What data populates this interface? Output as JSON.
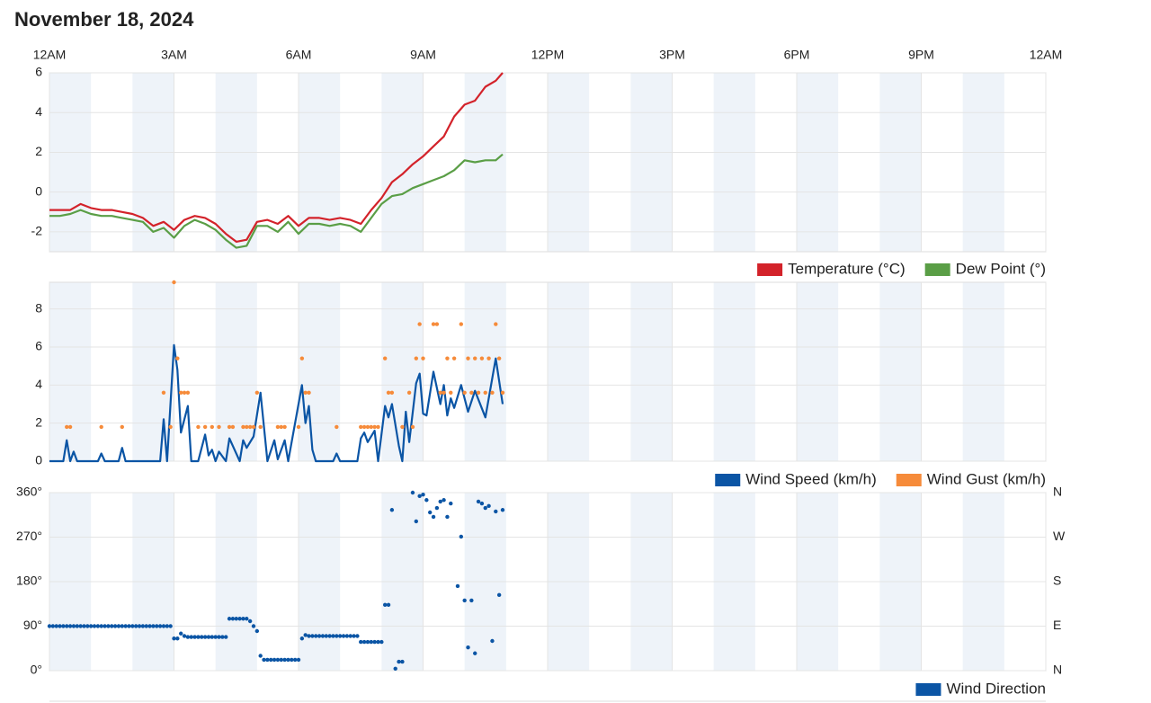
{
  "title": "November 18, 2024",
  "chart_data": [
    {
      "type": "line",
      "xlim": [
        0,
        1440
      ],
      "xticks": [
        {
          "value": 0,
          "label": "12AM"
        },
        {
          "value": 180,
          "label": "3AM"
        },
        {
          "value": 360,
          "label": "6AM"
        },
        {
          "value": 540,
          "label": "9AM"
        },
        {
          "value": 720,
          "label": "12PM"
        },
        {
          "value": 900,
          "label": "3PM"
        },
        {
          "value": 1080,
          "label": "6PM"
        },
        {
          "value": 1260,
          "label": "9PM"
        },
        {
          "value": 1440,
          "label": "12AM"
        }
      ],
      "ylim": [
        -3,
        6
      ],
      "yticks": [
        -2,
        0,
        2,
        4,
        6
      ],
      "grid": true,
      "x": [
        0,
        15,
        30,
        45,
        60,
        75,
        90,
        105,
        120,
        135,
        150,
        165,
        180,
        195,
        210,
        225,
        240,
        255,
        270,
        285,
        300,
        315,
        330,
        345,
        360,
        375,
        390,
        405,
        420,
        435,
        450,
        465,
        480,
        495,
        510,
        525,
        540,
        555,
        570,
        585,
        600,
        615,
        630,
        645,
        655
      ],
      "series": [
        {
          "name": "Temperature (°C)",
          "color": "#d3222a",
          "values": [
            -0.9,
            -0.9,
            -0.9,
            -0.6,
            -0.8,
            -0.9,
            -0.9,
            -1.0,
            -1.1,
            -1.3,
            -1.7,
            -1.5,
            -1.9,
            -1.4,
            -1.2,
            -1.3,
            -1.6,
            -2.1,
            -2.5,
            -2.4,
            -1.5,
            -1.4,
            -1.6,
            -1.2,
            -1.7,
            -1.3,
            -1.3,
            -1.4,
            -1.3,
            -1.4,
            -1.6,
            -0.9,
            -0.3,
            0.5,
            0.9,
            1.4,
            1.8,
            2.3,
            2.8,
            3.8,
            4.4,
            4.6,
            5.3,
            5.6,
            6.0
          ]
        },
        {
          "name": "Dew Point (°)",
          "color": "#5a9e46",
          "values": [
            -1.2,
            -1.2,
            -1.1,
            -0.9,
            -1.1,
            -1.2,
            -1.2,
            -1.3,
            -1.4,
            -1.5,
            -2.0,
            -1.8,
            -2.3,
            -1.7,
            -1.4,
            -1.6,
            -1.9,
            -2.4,
            -2.8,
            -2.7,
            -1.7,
            -1.7,
            -2.0,
            -1.5,
            -2.1,
            -1.6,
            -1.6,
            -1.7,
            -1.6,
            -1.7,
            -2.0,
            -1.3,
            -0.6,
            -0.2,
            -0.1,
            0.2,
            0.4,
            0.6,
            0.8,
            1.1,
            1.6,
            1.5,
            1.6,
            1.6,
            1.9
          ]
        }
      ]
    },
    {
      "type": "line",
      "xlim": [
        0,
        1440
      ],
      "ylim": [
        0,
        9.4
      ],
      "yticks": [
        0,
        2,
        4,
        6,
        8
      ],
      "grid": true,
      "series": [
        {
          "name": "Wind Speed (km/h)",
          "color": "#0b55a5",
          "x": [
            0,
            20,
            25,
            30,
            35,
            40,
            70,
            75,
            80,
            100,
            105,
            110,
            160,
            165,
            170,
            180,
            185,
            190,
            200,
            205,
            215,
            225,
            230,
            235,
            240,
            245,
            255,
            260,
            275,
            280,
            285,
            295,
            305,
            315,
            325,
            330,
            340,
            345,
            365,
            370,
            375,
            380,
            385,
            410,
            415,
            420,
            445,
            450,
            455,
            460,
            470,
            475,
            485,
            490,
            495,
            505,
            510,
            515,
            520,
            530,
            535,
            540,
            545,
            555,
            565,
            570,
            575,
            580,
            585,
            595,
            605,
            615,
            630,
            645,
            655
          ],
          "values": [
            0,
            0,
            1.1,
            0,
            0.5,
            0,
            0,
            0.4,
            0,
            0,
            0.7,
            0,
            0,
            2.2,
            0,
            6.1,
            4.8,
            1.5,
            2.9,
            0,
            0,
            1.4,
            0.3,
            0.6,
            0,
            0.5,
            0,
            1.2,
            0,
            1.1,
            0.7,
            1.3,
            3.6,
            0,
            1.1,
            0.1,
            1.1,
            0,
            4.0,
            2.0,
            2.9,
            0.6,
            0,
            0,
            0.4,
            0,
            0,
            1.2,
            1.5,
            1.0,
            1.6,
            0,
            2.9,
            2.3,
            3.0,
            0.8,
            0,
            2.6,
            1.0,
            4.1,
            4.6,
            2.5,
            2.4,
            4.7,
            3.0,
            4.0,
            2.4,
            3.3,
            2.8,
            4.0,
            2.6,
            3.7,
            2.3,
            5.4,
            3.0
          ]
        },
        {
          "name": "Wind Gust (km/h)",
          "color": "#f68b3a",
          "type": "scatter",
          "x": [
            25,
            30,
            75,
            105,
            165,
            175,
            180,
            185,
            190,
            195,
            200,
            215,
            225,
            235,
            245,
            260,
            265,
            280,
            285,
            290,
            295,
            300,
            305,
            330,
            335,
            340,
            360,
            365,
            370,
            375,
            415,
            450,
            455,
            460,
            465,
            470,
            475,
            485,
            490,
            495,
            510,
            520,
            525,
            530,
            535,
            540,
            555,
            560,
            565,
            570,
            575,
            580,
            585,
            595,
            600,
            605,
            610,
            615,
            620,
            625,
            630,
            635,
            640,
            645,
            650,
            655
          ],
          "values": [
            1.8,
            1.8,
            1.8,
            1.8,
            3.6,
            1.8,
            9.4,
            5.4,
            3.6,
            3.6,
            3.6,
            1.8,
            1.8,
            1.8,
            1.8,
            1.8,
            1.8,
            1.8,
            1.8,
            1.8,
            1.8,
            3.6,
            1.8,
            1.8,
            1.8,
            1.8,
            1.8,
            5.4,
            3.6,
            3.6,
            1.8,
            1.8,
            1.8,
            1.8,
            1.8,
            1.8,
            1.8,
            5.4,
            3.6,
            3.6,
            1.8,
            3.6,
            1.8,
            5.4,
            7.2,
            5.4,
            7.2,
            7.2,
            3.6,
            3.6,
            5.4,
            3.6,
            5.4,
            7.2,
            3.6,
            5.4,
            3.6,
            5.4,
            3.6,
            5.4,
            3.6,
            5.4,
            3.6,
            7.2,
            5.4,
            3.6
          ]
        }
      ]
    },
    {
      "type": "scatter",
      "xlim": [
        0,
        1440
      ],
      "ylim": [
        0,
        360
      ],
      "yticks": [
        {
          "value": 0,
          "label": "0°"
        },
        {
          "value": 90,
          "label": "90°"
        },
        {
          "value": 180,
          "label": "180°"
        },
        {
          "value": 270,
          "label": "270°"
        },
        {
          "value": 360,
          "label": "360°"
        }
      ],
      "grid": true,
      "y2lim": [
        0,
        360
      ],
      "y2ticks": [
        {
          "value": 0,
          "label": "N"
        },
        {
          "value": 90,
          "label": "E"
        },
        {
          "value": 180,
          "label": "S"
        },
        {
          "value": 270,
          "label": "W"
        },
        {
          "value": 360,
          "label": "N"
        }
      ],
      "series": [
        {
          "name": "Wind Direction",
          "color": "#0b55a5",
          "x": [
            0,
            5,
            10,
            15,
            20,
            25,
            30,
            35,
            40,
            45,
            50,
            55,
            60,
            65,
            70,
            75,
            80,
            85,
            90,
            95,
            100,
            105,
            110,
            115,
            120,
            125,
            130,
            135,
            140,
            145,
            150,
            155,
            160,
            165,
            170,
            175,
            180,
            185,
            190,
            195,
            200,
            205,
            210,
            215,
            220,
            225,
            230,
            235,
            240,
            245,
            250,
            255,
            260,
            265,
            270,
            275,
            280,
            285,
            290,
            295,
            300,
            305,
            310,
            315,
            320,
            325,
            330,
            335,
            340,
            345,
            350,
            355,
            360,
            365,
            370,
            375,
            380,
            385,
            390,
            395,
            400,
            405,
            410,
            415,
            420,
            425,
            430,
            435,
            440,
            445,
            450,
            455,
            460,
            465,
            470,
            475,
            480,
            485,
            490,
            495,
            500,
            505,
            510,
            525,
            530,
            535,
            540,
            545,
            550,
            555,
            560,
            565,
            570,
            575,
            580,
            590,
            595,
            600,
            605,
            610,
            615,
            620,
            625,
            630,
            635,
            640,
            645,
            650,
            655
          ],
          "values": [
            90,
            90,
            90,
            90,
            90,
            90,
            90,
            90,
            90,
            90,
            90,
            90,
            90,
            90,
            90,
            90,
            90,
            90,
            90,
            90,
            90,
            90,
            90,
            90,
            90,
            90,
            90,
            90,
            90,
            90,
            90,
            90,
            90,
            90,
            90,
            90,
            65,
            65,
            75,
            70,
            68,
            68,
            68,
            68,
            68,
            68,
            68,
            68,
            68,
            68,
            68,
            68,
            105,
            105,
            105,
            105,
            105,
            105,
            100,
            90,
            80,
            30,
            22,
            22,
            22,
            22,
            22,
            22,
            22,
            22,
            22,
            22,
            22,
            65,
            72,
            70,
            70,
            70,
            70,
            70,
            70,
            70,
            70,
            70,
            70,
            70,
            70,
            70,
            70,
            70,
            58,
            58,
            58,
            58,
            58,
            58,
            58,
            133,
            133,
            325,
            4,
            18,
            18,
            360,
            302,
            353,
            356,
            345,
            320,
            311,
            329,
            342,
            345,
            311,
            338,
            171,
            271,
            142,
            47,
            142,
            35,
            342,
            338,
            329,
            333,
            60,
            322,
            153,
            325
          ]
        }
      ]
    }
  ]
}
